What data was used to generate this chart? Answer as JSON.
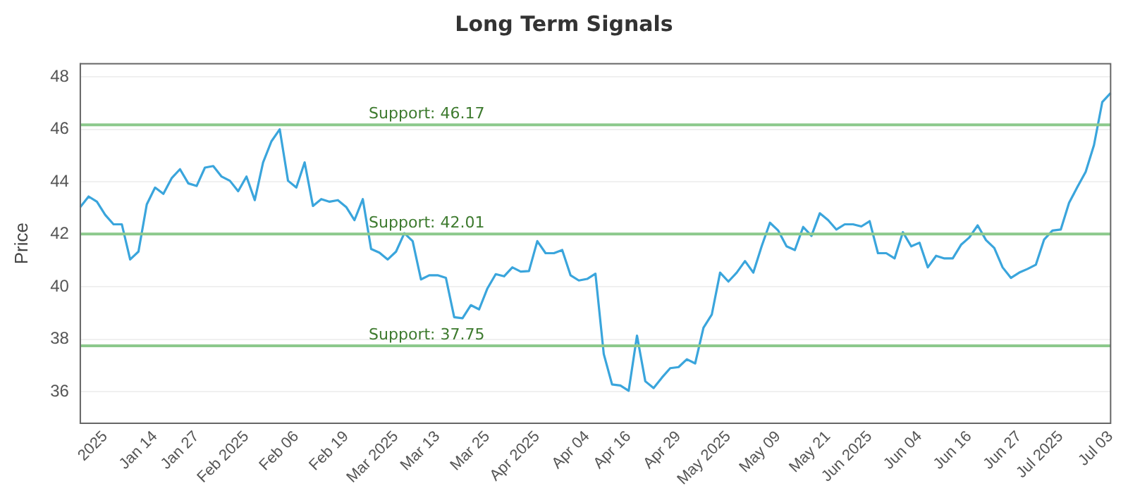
{
  "chart_data": {
    "type": "line",
    "title": "Long Term Signals",
    "ylabel": "Price",
    "categories": [
      null,
      null,
      null,
      "2025",
      null,
      null,
      null,
      null,
      null,
      "Jan 14",
      null,
      null,
      null,
      null,
      "Jan 27",
      null,
      null,
      null,
      null,
      null,
      "Feb 2025",
      null,
      null,
      null,
      null,
      null,
      "Feb 06",
      null,
      null,
      null,
      null,
      null,
      "Feb 19",
      null,
      null,
      null,
      null,
      null,
      "Mar 2025",
      null,
      null,
      null,
      null,
      "Mar 13",
      null,
      null,
      null,
      null,
      null,
      "Mar 25",
      null,
      null,
      null,
      null,
      null,
      "Apr 2025",
      null,
      null,
      null,
      null,
      null,
      "Apr 04",
      null,
      null,
      null,
      null,
      "Apr 16",
      null,
      null,
      null,
      null,
      null,
      "Apr 29",
      null,
      null,
      null,
      null,
      null,
      "May 2025",
      null,
      null,
      null,
      null,
      null,
      "May 09",
      null,
      null,
      null,
      null,
      null,
      "May 21",
      null,
      null,
      null,
      null,
      "Jun 2025",
      null,
      null,
      null,
      null,
      null,
      "Jun 04",
      null,
      null,
      null,
      null,
      null,
      "Jun 16",
      null,
      null,
      null,
      null,
      null,
      "Jun 27",
      null,
      null,
      null,
      null,
      "Jul 2025",
      null,
      null,
      null,
      null,
      null,
      "Jul 03"
    ],
    "series": [
      {
        "color": "#3aa5dc",
        "values": [
          43.04,
          43.44,
          43.24,
          42.74,
          42.38,
          42.38,
          41.04,
          41.34,
          43.14,
          43.78,
          43.54,
          44.14,
          44.48,
          43.94,
          43.84,
          44.54,
          44.6,
          44.2,
          44.04,
          43.64,
          44.2,
          43.3,
          44.74,
          45.54,
          46.0,
          44.04,
          43.78,
          44.74,
          43.08,
          43.34,
          43.24,
          43.3,
          43.04,
          42.54,
          43.34,
          41.44,
          41.3,
          41.04,
          41.34,
          42.04,
          41.74,
          40.28,
          40.44,
          40.44,
          40.34,
          38.84,
          38.8,
          39.3,
          39.14,
          39.94,
          40.48,
          40.4,
          40.74,
          40.58,
          40.6,
          41.74,
          41.28,
          41.28,
          41.4,
          40.44,
          40.24,
          40.3,
          40.5,
          37.44,
          36.28,
          36.24,
          36.04,
          38.14,
          36.4,
          36.14,
          36.54,
          36.9,
          36.94,
          37.24,
          37.08,
          38.44,
          38.94,
          40.54,
          40.2,
          40.54,
          40.98,
          40.54,
          41.54,
          42.44,
          42.14,
          41.54,
          41.4,
          42.28,
          41.94,
          42.8,
          42.54,
          42.18,
          42.38,
          42.38,
          42.3,
          42.5,
          41.28,
          41.28,
          41.08,
          42.08,
          41.54,
          41.68,
          40.74,
          41.18,
          41.08,
          41.08,
          41.6,
          41.88,
          42.34,
          41.78,
          41.48,
          40.74,
          40.34,
          40.54,
          40.68,
          40.84,
          41.8,
          42.14,
          42.18,
          43.2,
          43.8,
          44.38,
          45.4,
          47.04,
          47.38
        ]
      }
    ],
    "ylim": [
      34.8,
      48.5
    ],
    "yticks": [
      36,
      38,
      40,
      42,
      44,
      46,
      48
    ],
    "grid": "y",
    "marker": "none",
    "line_style": "solid",
    "legend": false,
    "ref_lines": [
      {
        "axis": "y",
        "value": 46.17,
        "label": "Support: 46.17",
        "color": "#8cc98c"
      },
      {
        "axis": "y",
        "value": 42.01,
        "label": "Support: 42.01",
        "color": "#8cc98c"
      },
      {
        "axis": "y",
        "value": 37.75,
        "label": "Support: 37.75",
        "color": "#8cc98c"
      }
    ]
  }
}
